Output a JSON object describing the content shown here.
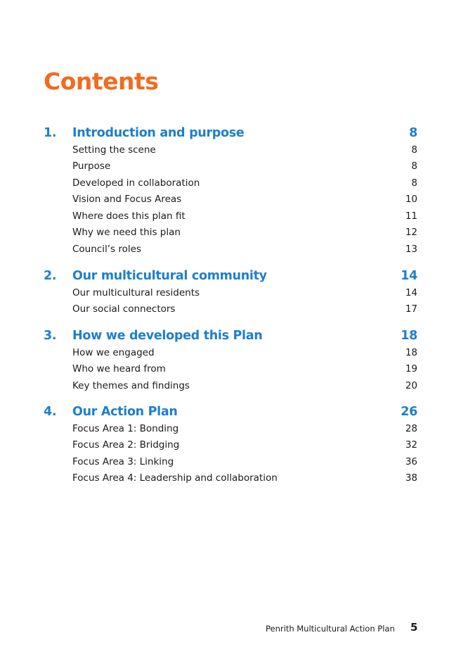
{
  "title": "Contents",
  "sections": [
    {
      "number": "1.",
      "label": "Introduction and purpose",
      "page": "8",
      "items": [
        {
          "label": "Setting the scene",
          "page": "8"
        },
        {
          "label": "Purpose",
          "page": "8"
        },
        {
          "label": "Developed in collaboration",
          "page": "8"
        },
        {
          "label": "Vision and Focus Areas",
          "page": "10"
        },
        {
          "label": "Where does this plan fit",
          "page": "11"
        },
        {
          "label": "Why we need this plan",
          "page": "12"
        },
        {
          "label": "Council’s roles",
          "page": "13"
        }
      ]
    },
    {
      "number": "2.",
      "label": "Our multicultural community",
      "page": "14",
      "items": [
        {
          "label": "Our multicultural residents",
          "page": "14"
        },
        {
          "label": "Our social connectors",
          "page": "17"
        }
      ]
    },
    {
      "number": "3.",
      "label": "How we developed this Plan",
      "page": "18",
      "items": [
        {
          "label": "How we engaged",
          "page": "18"
        },
        {
          "label": "Who we heard from",
          "page": "19"
        },
        {
          "label": "Key themes and findings",
          "page": "20"
        }
      ]
    },
    {
      "number": "4.",
      "label": "Our Action Plan",
      "page": "26",
      "items": [
        {
          "label": "Focus Area 1: Bonding",
          "page": "28"
        },
        {
          "label": "Focus Area 2: Bridging",
          "page": "32"
        },
        {
          "label": "Focus Area 3: Linking",
          "page": "36"
        },
        {
          "label": "Focus Area 4: Leadership and collaboration",
          "page": "38"
        }
      ]
    }
  ],
  "footer": {
    "document_title": "Penrith Multicultural Action Plan",
    "page_number": "5"
  },
  "colors": {
    "title": "#F26B21",
    "section_heading": "#1E7FCB",
    "text": "#1a1a1a"
  }
}
